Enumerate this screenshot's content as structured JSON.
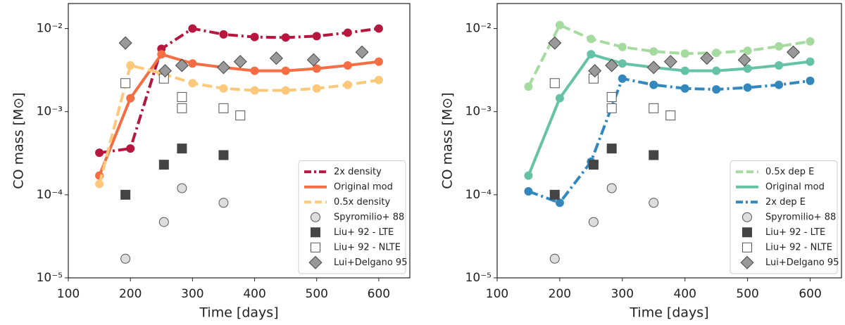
{
  "chart_data": [
    {
      "type": "line",
      "xlabel": "Time [days]",
      "ylabel": "CO mass [M⊙]",
      "xlim": [
        100,
        650
      ],
      "xticks": [
        100,
        200,
        300,
        400,
        500,
        600
      ],
      "ylim": [
        1e-05,
        0.02
      ],
      "log_y": true,
      "yticks": [
        {
          "value": 1e-05,
          "label": "10⁻⁵"
        },
        {
          "value": 0.0001,
          "label": "10⁻⁴"
        },
        {
          "value": 0.001,
          "label": "10⁻³"
        },
        {
          "value": 0.01,
          "label": "10⁻²"
        }
      ],
      "legend": "lower right",
      "series": [
        {
          "name": "2x density",
          "color": "#b5173e",
          "linestyle": "dashdot",
          "marker": "circle",
          "x": [
            150,
            200,
            250,
            300,
            350,
            400,
            450,
            500,
            550,
            600
          ],
          "values": [
            0.00032,
            0.00036,
            0.0057,
            0.01,
            0.0085,
            0.0079,
            0.0078,
            0.0081,
            0.0089,
            0.01
          ]
        },
        {
          "name": "Original mod",
          "color": "#f46d43",
          "linestyle": "solid",
          "marker": "circle",
          "x": [
            150,
            200,
            250,
            300,
            350,
            400,
            450,
            500,
            550,
            600
          ],
          "values": [
            0.00017,
            0.00145,
            0.0049,
            0.0038,
            0.0034,
            0.0031,
            0.0031,
            0.0033,
            0.0036,
            0.004
          ]
        },
        {
          "name": "0.5x density",
          "color": "#fdc87a",
          "linestyle": "dashed",
          "marker": "circle",
          "x": [
            150,
            200,
            250,
            300,
            350,
            400,
            450,
            500,
            550,
            600
          ],
          "values": [
            0.000135,
            0.0036,
            0.0029,
            0.0022,
            0.0019,
            0.0018,
            0.0018,
            0.0019,
            0.0021,
            0.0024
          ]
        },
        {
          "name": "Spyromilio+ 88",
          "color": "#dddddd",
          "edgecolor": "#555555",
          "linestyle": "none",
          "marker": "circle",
          "x": [
            192,
            254,
            283,
            350
          ],
          "values": [
            1.7e-05,
            4.7e-05,
            0.00012,
            8e-05
          ]
        },
        {
          "name": "Liu+ 92 - LTE",
          "color": "#444444",
          "edgecolor": "#444444",
          "linestyle": "none",
          "marker": "square",
          "x": [
            192,
            254,
            283,
            350
          ],
          "values": [
            0.0001,
            0.00023,
            0.00036,
            0.0003
          ]
        },
        {
          "name": "Liu+ 92 - NLTE",
          "color": "#ffffff",
          "edgecolor": "#555555",
          "linestyle": "none",
          "marker": "square",
          "x": [
            192,
            254,
            283,
            283,
            350,
            377
          ],
          "values": [
            0.0022,
            0.0025,
            0.0015,
            0.0011,
            0.0011,
            0.0009
          ]
        },
        {
          "name": "Lui+Delgano 95",
          "color": "#999999",
          "edgecolor": "#444444",
          "linestyle": "none",
          "marker": "diamond",
          "x": [
            192,
            256,
            283,
            350,
            377,
            435,
            495,
            573
          ],
          "values": [
            0.0067,
            0.0031,
            0.0036,
            0.0034,
            0.004,
            0.0044,
            0.0042,
            0.0052
          ]
        }
      ]
    },
    {
      "type": "line",
      "xlabel": "Time [days]",
      "ylabel": "CO mass [M⊙]",
      "xlim": [
        100,
        650
      ],
      "xticks": [
        100,
        200,
        300,
        400,
        500,
        600
      ],
      "ylim": [
        1e-05,
        0.02
      ],
      "log_y": true,
      "yticks": [
        {
          "value": 1e-05,
          "label": "10⁻⁵"
        },
        {
          "value": 0.0001,
          "label": "10⁻⁴"
        },
        {
          "value": 0.001,
          "label": "10⁻³"
        },
        {
          "value": 0.01,
          "label": "10⁻²"
        }
      ],
      "legend": "lower right",
      "series": [
        {
          "name": "0.5x dep E",
          "color": "#a6dba0",
          "linestyle": "dashed",
          "marker": "circle",
          "x": [
            150,
            200,
            250,
            300,
            350,
            400,
            450,
            500,
            550,
            600
          ],
          "values": [
            0.002,
            0.011,
            0.0075,
            0.006,
            0.0053,
            0.005,
            0.0051,
            0.0054,
            0.0061,
            0.007
          ]
        },
        {
          "name": "Original mod",
          "color": "#66c2a4",
          "linestyle": "solid",
          "marker": "circle",
          "x": [
            150,
            200,
            250,
            300,
            350,
            400,
            450,
            500,
            550,
            600
          ],
          "values": [
            0.00017,
            0.00145,
            0.0049,
            0.0038,
            0.0034,
            0.0031,
            0.0031,
            0.0033,
            0.0036,
            0.004
          ]
        },
        {
          "name": "2x dep E",
          "color": "#3288bd",
          "linestyle": "dashdot",
          "marker": "circle",
          "x": [
            150,
            200,
            250,
            300,
            350,
            400,
            450,
            500,
            550,
            600
          ],
          "values": [
            0.00011,
            8e-05,
            0.00025,
            0.0025,
            0.0021,
            0.0019,
            0.00185,
            0.00195,
            0.0021,
            0.00235
          ]
        },
        {
          "name": "Spyromilio+ 88",
          "color": "#dddddd",
          "edgecolor": "#555555",
          "linestyle": "none",
          "marker": "circle",
          "x": [
            192,
            254,
            283,
            350
          ],
          "values": [
            1.7e-05,
            4.7e-05,
            0.00012,
            8e-05
          ]
        },
        {
          "name": "Liu+ 92 - LTE",
          "color": "#444444",
          "edgecolor": "#444444",
          "linestyle": "none",
          "marker": "square",
          "x": [
            192,
            254,
            283,
            350
          ],
          "values": [
            0.0001,
            0.00023,
            0.00036,
            0.0003
          ]
        },
        {
          "name": "Liu+ 92 - NLTE",
          "color": "#ffffff",
          "edgecolor": "#555555",
          "linestyle": "none",
          "marker": "square",
          "x": [
            192,
            254,
            283,
            283,
            350,
            377
          ],
          "values": [
            0.0022,
            0.0025,
            0.0015,
            0.0011,
            0.0011,
            0.0009
          ]
        },
        {
          "name": "Lui+Delgano 95",
          "color": "#999999",
          "edgecolor": "#444444",
          "linestyle": "none",
          "marker": "diamond",
          "x": [
            192,
            256,
            283,
            350,
            377,
            435,
            495,
            573
          ],
          "values": [
            0.0067,
            0.0031,
            0.0036,
            0.0034,
            0.004,
            0.0044,
            0.0042,
            0.0052
          ]
        }
      ]
    }
  ]
}
